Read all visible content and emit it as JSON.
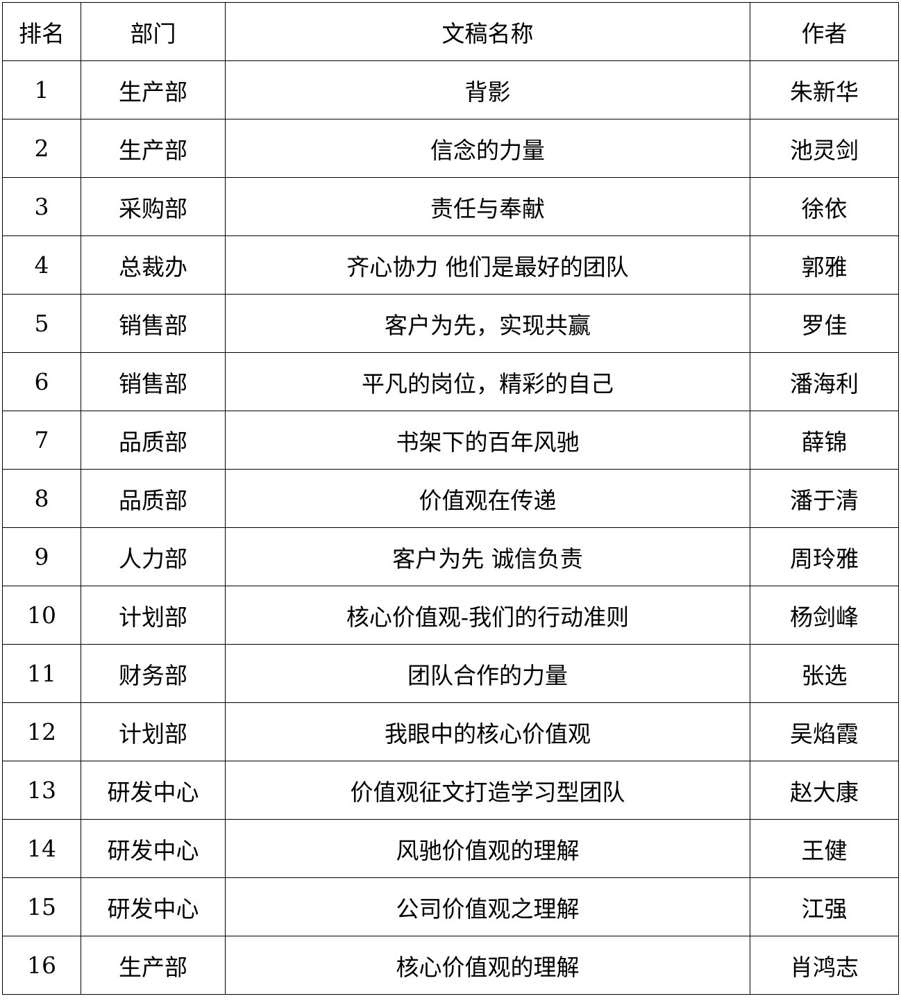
{
  "table": {
    "headers": [
      "排名",
      "部门",
      "文稿名称",
      "作者"
    ],
    "rows": [
      [
        "1",
        "生产部",
        "背影",
        "朱新华"
      ],
      [
        "2",
        "生产部",
        "信念的力量",
        "池灵剑"
      ],
      [
        "3",
        "采购部",
        "责任与奉献",
        "徐依"
      ],
      [
        "4",
        "总裁办",
        "齐心协力 他们是最好的团队",
        "郭雅"
      ],
      [
        "5",
        "销售部",
        "客户为先，实现共赢",
        "罗佳"
      ],
      [
        "6",
        "销售部",
        "平凡的岗位，精彩的自己",
        "潘海利"
      ],
      [
        "7",
        "品质部",
        "书架下的百年风驰",
        "薛锦"
      ],
      [
        "8",
        "品质部",
        "价值观在传递",
        "潘于清"
      ],
      [
        "9",
        "人力部",
        "客户为先 诚信负责",
        "周玲雅"
      ],
      [
        "10",
        "计划部",
        "核心价值观-我们的行动准则",
        "杨剑峰"
      ],
      [
        "11",
        "财务部",
        "团队合作的力量",
        "张选"
      ],
      [
        "12",
        "计划部",
        "我眼中的核心价值观",
        "吴焰霞"
      ],
      [
        "13",
        "研发中心",
        "价值观征文打造学习型团队",
        "赵大康"
      ],
      [
        "14",
        "研发中心",
        "风驰价值观的理解",
        "王健"
      ],
      [
        "15",
        "研发中心",
        "公司价值观之理解",
        "江强"
      ],
      [
        "16",
        "生产部",
        "核心价值观的理解",
        "肖鸿志"
      ]
    ]
  }
}
